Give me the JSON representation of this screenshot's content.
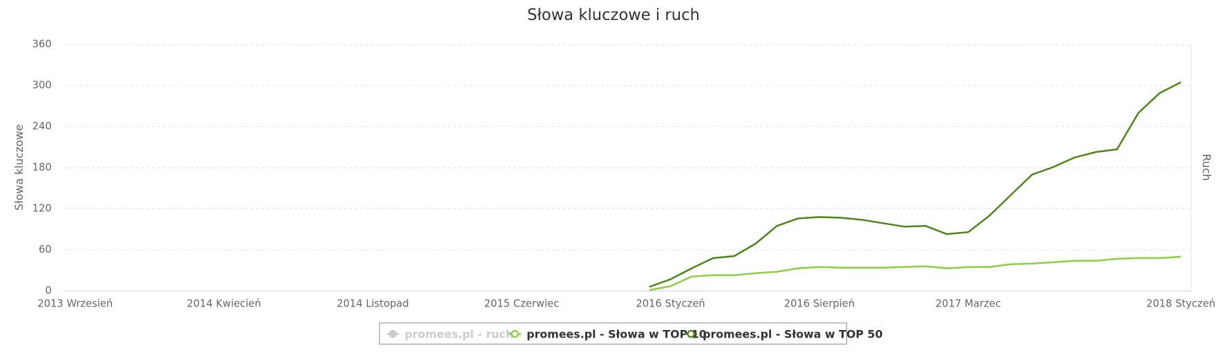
{
  "chart_data": {
    "type": "line",
    "title": "Słowa kluczowe i ruch",
    "y_label": "Słowa kluczowe",
    "y2_label": "Ruch",
    "categories": [
      "2013 Wrzesień",
      null,
      null,
      null,
      null,
      null,
      null,
      "2014 Kwiecień",
      null,
      null,
      null,
      null,
      null,
      null,
      "2014 Listopad",
      null,
      null,
      null,
      null,
      null,
      null,
      "2015 Czerwiec",
      null,
      null,
      null,
      null,
      null,
      null,
      "2016 Styczeń",
      null,
      null,
      null,
      null,
      null,
      null,
      "2016 Sierpień",
      null,
      null,
      null,
      null,
      null,
      null,
      "2017 Marzec",
      null,
      null,
      null,
      null,
      null,
      null,
      null,
      null,
      null,
      "2018 Styczeń"
    ],
    "ylim": [
      0,
      360
    ],
    "yticks": [
      0,
      60,
      120,
      180,
      240,
      300,
      360
    ],
    "grid": true,
    "legend": "bottom",
    "series": [
      {
        "name": "promees.pl - ruch",
        "color": "#cccccc",
        "axis": "y2",
        "visible": false,
        "values": [
          null,
          null,
          null,
          null,
          null,
          null,
          null,
          null,
          null,
          null,
          null,
          null,
          null,
          null,
          null,
          null,
          null,
          null,
          null,
          null,
          null,
          null,
          null,
          null,
          null,
          null,
          null,
          null,
          null,
          null,
          null,
          null,
          null,
          null,
          null,
          null,
          null,
          null,
          null,
          null,
          null,
          null,
          null,
          null,
          null,
          null,
          null,
          null,
          null,
          null,
          null,
          null,
          null
        ]
      },
      {
        "name": "promees.pl - Słowa w TOP 10",
        "color": "#8bcf3f",
        "visible": true,
        "values": [
          null,
          null,
          null,
          null,
          null,
          null,
          null,
          null,
          null,
          null,
          null,
          null,
          null,
          null,
          null,
          null,
          null,
          null,
          null,
          null,
          null,
          null,
          null,
          null,
          null,
          null,
          null,
          1,
          7,
          21,
          23,
          23,
          26,
          28,
          33,
          35,
          34,
          34,
          34,
          35,
          36,
          33,
          35,
          35,
          39,
          40,
          42,
          44,
          44,
          47,
          48,
          48,
          50
        ]
      },
      {
        "name": "promees.pl - Słowa w TOP 50",
        "color": "#4d8518",
        "visible": true,
        "values": [
          null,
          null,
          null,
          null,
          null,
          null,
          null,
          null,
          null,
          null,
          null,
          null,
          null,
          null,
          null,
          null,
          null,
          null,
          null,
          null,
          null,
          null,
          null,
          null,
          null,
          null,
          null,
          6,
          17,
          33,
          48,
          51,
          69,
          95,
          106,
          108,
          107,
          104,
          99,
          94,
          95,
          83,
          86,
          110,
          140,
          170,
          181,
          195,
          203,
          207,
          260,
          289,
          305
        ]
      }
    ]
  }
}
